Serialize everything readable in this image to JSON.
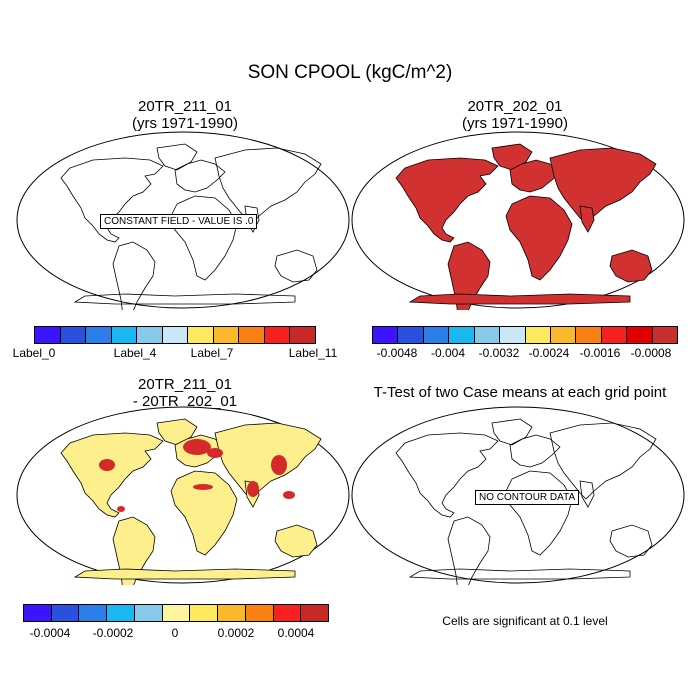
{
  "title": "SON CPOOL (kgC/m^2)",
  "panels": [
    {
      "title": "20TR_211_01",
      "subtitle": "(yrs 1971-1990)",
      "message": "CONSTANT FIELD - VALUE IS .0"
    },
    {
      "title": "20TR_202_01",
      "subtitle": "(yrs 1971-1990)"
    },
    {
      "title": "20TR_211_01",
      "subtitle": "- 20TR_202_01"
    },
    {
      "title": "T-Test of two Case means at each grid point",
      "message": "NO CONTOUR DATA"
    }
  ],
  "colorbars": [
    {
      "colors": [
        "#3d14ff",
        "#2a50e0",
        "#2d7ee8",
        "#1ab8f0",
        "#88c8e8",
        "#c8e8f8",
        "#fde860",
        "#fbb82c",
        "#fa8014",
        "#f82020",
        "#c82828"
      ],
      "labels": [
        "Label_0",
        "Label_4",
        "Label_7",
        "Label_11"
      ]
    },
    {
      "colors": [
        "#3d14ff",
        "#2a50e0",
        "#2d7ee8",
        "#1ab8f0",
        "#88c8e8",
        "#c8e8f8",
        "#fde860",
        "#fbb82c",
        "#fa8014",
        "#f82020",
        "#e00000",
        "#c83030"
      ],
      "labels": [
        "-0.0048",
        "-0.004",
        "-0.0032",
        "-0.0024",
        "-0.0016",
        "-0.0008"
      ]
    },
    {
      "colors": [
        "#3d14ff",
        "#2a50e0",
        "#2d7ee8",
        "#1ab8f0",
        "#88c8e8",
        "#fdf4a0",
        "#fde860",
        "#fbb82c",
        "#fa8014",
        "#f82020",
        "#c82828"
      ],
      "labels": [
        "-0.0004",
        "-0.0002",
        "0",
        "0.0002",
        "0.0004"
      ]
    }
  ],
  "footnote": "Cells are significant at 0.1 level",
  "fills": {
    "ocean": "#ffffff",
    "land_uniform": "#d13131",
    "land_diff": "#fdf08c",
    "hotspot": "#d42a2a"
  }
}
